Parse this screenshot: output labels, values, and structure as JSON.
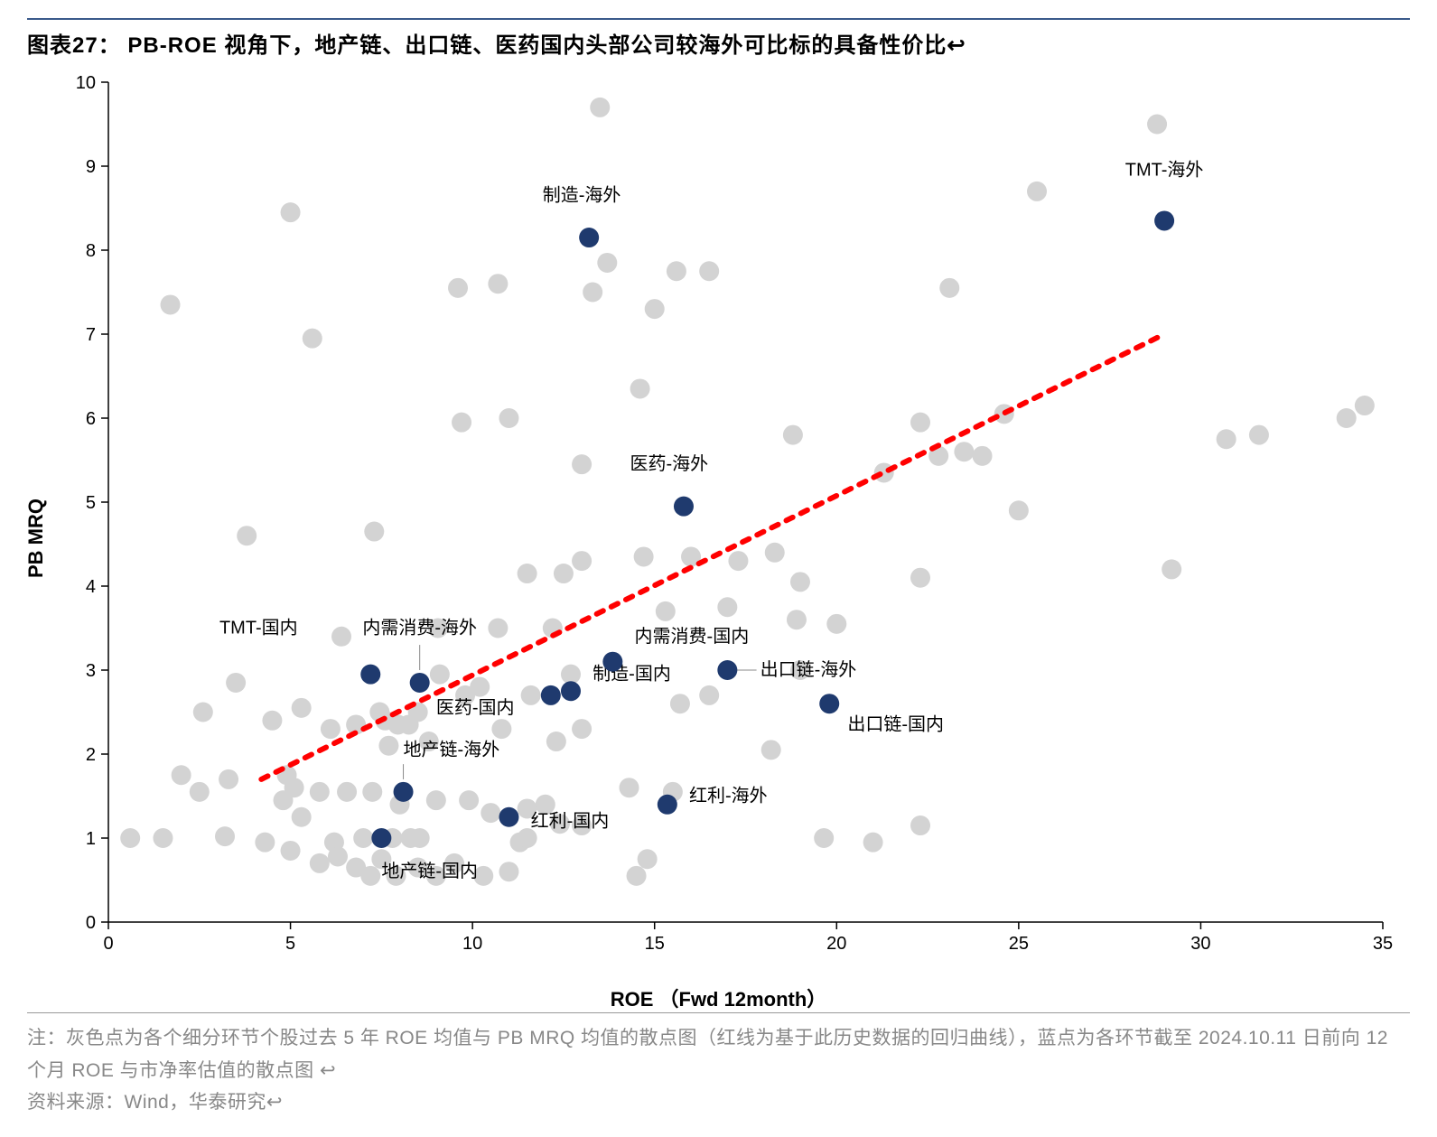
{
  "title": "图表27：  PB-ROE 视角下，地产链、出口链、医药国内头部公司较海外可比标的具备性价比↩",
  "footer_note": "注：灰色点为各个细分环节个股过去 5 年 ROE 均值与 PB MRQ 均值的散点图（红线为基于此历史数据的回归曲线），蓝点为各环节截至 2024.10.11 日前向 12 个月 ROE  与市净率估值的散点图 ↩",
  "footer_source": "资料来源：Wind，华泰研究↩",
  "chart": {
    "type": "scatter",
    "background_color": "#ffffff",
    "plot_border_color": "#000000",
    "y_axis": {
      "label": "PB MRQ",
      "min": 0,
      "max": 10,
      "step": 1,
      "label_fontsize": 22,
      "tick_fontsize": 20
    },
    "x_axis": {
      "label": "ROE （Fwd 12month）",
      "min": 0,
      "max": 35,
      "step": 5,
      "label_fontsize": 22,
      "tick_fontsize": 20
    },
    "gray_point": {
      "color": "#d3d3d3",
      "radius": 11
    },
    "blue_point": {
      "color": "#1f3a6e",
      "radius": 11
    },
    "regression_line": {
      "color": "#ff0000",
      "dash": "8,10",
      "width": 6,
      "x1": 4.2,
      "y1": 1.7,
      "x2": 29.0,
      "y2": 7.0
    },
    "gray_points": [
      [
        0.6,
        1.0
      ],
      [
        1.5,
        1.0
      ],
      [
        1.7,
        7.35
      ],
      [
        2.0,
        1.75
      ],
      [
        2.5,
        1.55
      ],
      [
        2.6,
        2.5
      ],
      [
        3.2,
        1.02
      ],
      [
        3.3,
        1.7
      ],
      [
        3.5,
        2.85
      ],
      [
        3.8,
        4.6
      ],
      [
        4.3,
        0.95
      ],
      [
        4.5,
        2.4
      ],
      [
        4.8,
        1.45
      ],
      [
        4.9,
        1.75
      ],
      [
        5.0,
        8.45
      ],
      [
        5.0,
        0.85
      ],
      [
        5.1,
        1.6
      ],
      [
        5.3,
        2.55
      ],
      [
        5.3,
        1.25
      ],
      [
        5.6,
        6.95
      ],
      [
        5.8,
        0.7
      ],
      [
        5.8,
        1.55
      ],
      [
        6.1,
        2.3
      ],
      [
        6.2,
        0.95
      ],
      [
        6.3,
        0.78
      ],
      [
        6.4,
        3.4
      ],
      [
        6.55,
        1.55
      ],
      [
        6.8,
        0.65
      ],
      [
        6.8,
        2.35
      ],
      [
        7.0,
        1.0
      ],
      [
        7.2,
        0.55
      ],
      [
        7.25,
        1.55
      ],
      [
        7.3,
        4.65
      ],
      [
        7.45,
        2.5
      ],
      [
        7.5,
        0.75
      ],
      [
        7.6,
        2.4
      ],
      [
        7.7,
        2.1
      ],
      [
        7.8,
        1.0
      ],
      [
        7.9,
        0.55
      ],
      [
        7.95,
        2.35
      ],
      [
        8.0,
        1.4
      ],
      [
        8.25,
        2.35
      ],
      [
        8.3,
        1.0
      ],
      [
        8.5,
        0.65
      ],
      [
        8.5,
        2.5
      ],
      [
        8.55,
        1.0
      ],
      [
        8.8,
        2.15
      ],
      [
        9.0,
        0.55
      ],
      [
        9.05,
        3.5
      ],
      [
        9.0,
        1.45
      ],
      [
        9.1,
        2.95
      ],
      [
        9.5,
        0.7
      ],
      [
        9.6,
        7.55
      ],
      [
        9.7,
        5.95
      ],
      [
        9.8,
        2.7
      ],
      [
        9.9,
        1.45
      ],
      [
        10.2,
        2.8
      ],
      [
        10.3,
        0.55
      ],
      [
        10.5,
        1.3
      ],
      [
        10.7,
        7.6
      ],
      [
        10.7,
        3.5
      ],
      [
        10.8,
        2.3
      ],
      [
        11.0,
        0.6
      ],
      [
        11.0,
        6.0
      ],
      [
        11.3,
        0.95
      ],
      [
        11.5,
        1.0
      ],
      [
        11.5,
        1.35
      ],
      [
        11.5,
        4.15
      ],
      [
        11.6,
        2.7
      ],
      [
        12.0,
        1.4
      ],
      [
        12.2,
        3.5
      ],
      [
        12.3,
        2.15
      ],
      [
        12.4,
        1.17
      ],
      [
        12.5,
        4.15
      ],
      [
        12.7,
        2.95
      ],
      [
        13.0,
        5.45
      ],
      [
        13.0,
        2.3
      ],
      [
        13.0,
        1.15
      ],
      [
        13.0,
        4.3
      ],
      [
        13.3,
        7.5
      ],
      [
        13.5,
        9.7
      ],
      [
        13.7,
        7.85
      ],
      [
        14.3,
        1.6
      ],
      [
        14.5,
        0.55
      ],
      [
        14.6,
        6.35
      ],
      [
        14.7,
        4.35
      ],
      [
        14.8,
        0.75
      ],
      [
        15.0,
        7.3
      ],
      [
        15.3,
        3.7
      ],
      [
        15.5,
        1.55
      ],
      [
        15.6,
        7.75
      ],
      [
        15.7,
        2.6
      ],
      [
        16.0,
        4.35
      ],
      [
        16.5,
        2.7
      ],
      [
        16.5,
        7.75
      ],
      [
        17.0,
        3.75
      ],
      [
        17.3,
        4.3
      ],
      [
        18.2,
        2.05
      ],
      [
        18.3,
        4.4
      ],
      [
        18.8,
        5.8
      ],
      [
        18.9,
        3.6
      ],
      [
        19.0,
        3.0
      ],
      [
        19.0,
        4.05
      ],
      [
        19.65,
        1.0
      ],
      [
        20.0,
        3.55
      ],
      [
        21.0,
        0.95
      ],
      [
        21.3,
        5.35
      ],
      [
        22.3,
        4.1
      ],
      [
        22.3,
        5.95
      ],
      [
        22.3,
        1.15
      ],
      [
        22.8,
        5.55
      ],
      [
        23.1,
        7.55
      ],
      [
        23.5,
        5.6
      ],
      [
        24.0,
        5.55
      ],
      [
        24.6,
        6.05
      ],
      [
        25.0,
        4.9
      ],
      [
        25.5,
        8.7
      ],
      [
        28.8,
        9.5
      ],
      [
        29.2,
        4.2
      ],
      [
        30.7,
        5.75
      ],
      [
        31.6,
        5.8
      ],
      [
        34.0,
        6.0
      ],
      [
        34.5,
        6.15
      ]
    ],
    "blue_points": [
      {
        "x": 7.2,
        "y": 2.95,
        "label": "TMT-国内",
        "lx": -2.0,
        "ly": 0.55,
        "anchor": "end"
      },
      {
        "x": 8.55,
        "y": 2.85,
        "label": "内需消费-海外",
        "lx": 0.0,
        "ly": 0.65,
        "anchor": "middle",
        "leader": [
          [
            8.55,
            3.0
          ],
          [
            8.55,
            3.3
          ]
        ]
      },
      {
        "x": 13.2,
        "y": 8.15,
        "label": "制造-海外",
        "lx": -0.2,
        "ly": 0.5,
        "anchor": "middle"
      },
      {
        "x": 7.5,
        "y": 1.0,
        "label": "地产链-国内",
        "lx": 0.0,
        "ly": -0.4,
        "anchor": "start"
      },
      {
        "x": 8.1,
        "y": 1.55,
        "label": "地产链-海外",
        "lx": 0.0,
        "ly": 0.5,
        "anchor": "start",
        "leader": [
          [
            8.1,
            1.7
          ],
          [
            8.1,
            1.88
          ]
        ]
      },
      {
        "x": 11.0,
        "y": 1.25,
        "label": "红利-国内",
        "lx": 0.6,
        "ly": -0.05,
        "anchor": "start"
      },
      {
        "x": 12.15,
        "y": 2.7,
        "label": "医药-国内",
        "lx": -1.0,
        "ly": -0.15,
        "anchor": "end"
      },
      {
        "x": 12.7,
        "y": 2.75,
        "label": "制造-国内",
        "lx": 0.6,
        "ly": 0.2,
        "anchor": "start"
      },
      {
        "x": 13.85,
        "y": 3.1,
        "label": "内需消费-国内",
        "lx": 0.6,
        "ly": 0.3,
        "anchor": "start"
      },
      {
        "x": 15.35,
        "y": 1.4,
        "label": "红利-海外",
        "lx": 0.6,
        "ly": 0.1,
        "anchor": "start"
      },
      {
        "x": 15.8,
        "y": 4.95,
        "label": "医药-海外",
        "lx": -0.4,
        "ly": 0.5,
        "anchor": "middle"
      },
      {
        "x": 17.0,
        "y": 3.0,
        "label": "出口链-海外",
        "lx": 0.9,
        "ly": 0.0,
        "anchor": "start",
        "leader": [
          [
            17.2,
            3.0
          ],
          [
            17.8,
            3.0
          ]
        ]
      },
      {
        "x": 19.8,
        "y": 2.6,
        "label": "出口链-国内",
        "lx": 0.5,
        "ly": -0.25,
        "anchor": "start"
      },
      {
        "x": 29.0,
        "y": 8.35,
        "label": "TMT-海外",
        "lx": 0.0,
        "ly": 0.6,
        "anchor": "middle"
      }
    ]
  }
}
